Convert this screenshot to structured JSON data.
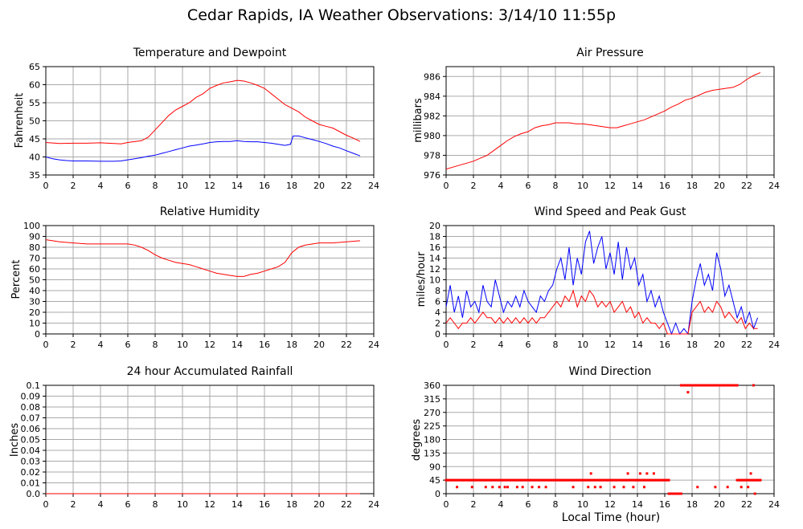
{
  "page_title": "Cedar Rapids, IA Weather Observations: 3/14/10 11:55p",
  "x_axis_label": "Local Time (hour)",
  "colors": {
    "red": "#ff0000",
    "blue": "#0000ff",
    "grid": "#aaaaaa"
  },
  "chart_data": [
    {
      "id": "temp",
      "type": "line",
      "title": "Temperature and Dewpoint",
      "ylabel": "Fahrenheit",
      "xlim": [
        0,
        24
      ],
      "ylim": [
        35,
        65
      ],
      "xticks": [
        0,
        2,
        4,
        6,
        8,
        10,
        12,
        14,
        16,
        18,
        20,
        22,
        24
      ],
      "yticks": [
        35,
        40,
        45,
        50,
        55,
        60,
        65
      ],
      "ytick_labels": [
        "35",
        "40",
        "45",
        "50",
        "55",
        "60",
        "65"
      ],
      "grid": true,
      "series": [
        {
          "color": "red",
          "style": "line",
          "x": [
            0,
            1,
            2,
            3,
            4,
            5,
            5.5,
            6,
            7,
            7.5,
            8,
            8.5,
            9,
            9.5,
            10,
            10.5,
            11,
            11.5,
            12,
            12.5,
            13,
            13.5,
            14,
            14.5,
            15,
            15.5,
            16,
            16.5,
            17,
            17.5,
            18,
            18.5,
            19,
            19.5,
            20,
            20.5,
            21,
            21.5,
            22,
            22.5,
            23
          ],
          "y": [
            44,
            43.7,
            43.8,
            43.8,
            43.9,
            43.7,
            43.6,
            44,
            44.5,
            45.5,
            47.5,
            49.5,
            51.5,
            53,
            54,
            55,
            56.5,
            57.5,
            59,
            59.8,
            60.5,
            60.8,
            61.2,
            61,
            60.5,
            59.8,
            59,
            57.5,
            56,
            54.5,
            53.5,
            52.5,
            51,
            50,
            49,
            48.5,
            48,
            47,
            46,
            45.2,
            44.3
          ]
        },
        {
          "color": "blue",
          "style": "line",
          "x": [
            0,
            0.5,
            1,
            1.5,
            2,
            3,
            4,
            5,
            5.5,
            6,
            6.5,
            7,
            7.5,
            8,
            8.5,
            9,
            9.5,
            10,
            10.5,
            11,
            11.5,
            12,
            12.5,
            13,
            13.5,
            14,
            14.5,
            15,
            15.5,
            16,
            16.5,
            17,
            17.5,
            17.9,
            18.1,
            18.5,
            19,
            19.5,
            20,
            20.5,
            21,
            21.5,
            22,
            22.5,
            23
          ],
          "y": [
            40,
            39.5,
            39.2,
            39,
            38.9,
            38.9,
            38.8,
            38.8,
            38.9,
            39.2,
            39.5,
            39.8,
            40.2,
            40.5,
            41,
            41.5,
            42,
            42.5,
            43,
            43.3,
            43.6,
            44,
            44.2,
            44.3,
            44.3,
            44.5,
            44.3,
            44.2,
            44.2,
            44,
            43.8,
            43.5,
            43.2,
            43.5,
            45.8,
            45.8,
            45.3,
            44.8,
            44.3,
            43.7,
            43,
            42.5,
            41.7,
            41,
            40.3
          ]
        }
      ]
    },
    {
      "id": "pressure",
      "type": "line",
      "title": "Air Pressure",
      "ylabel": "millibars",
      "xlim": [
        0,
        24
      ],
      "ylim": [
        976,
        987
      ],
      "xticks": [
        0,
        2,
        4,
        6,
        8,
        10,
        12,
        14,
        16,
        18,
        20,
        22,
        24
      ],
      "yticks": [
        976,
        978,
        980,
        982,
        984,
        986
      ],
      "ytick_labels": [
        "976",
        "978",
        "980",
        "982",
        "984",
        "986"
      ],
      "grid": true,
      "series": [
        {
          "color": "red",
          "style": "line",
          "x": [
            0,
            0.5,
            1,
            1.5,
            2,
            2.5,
            3,
            3.5,
            4,
            4.5,
            5,
            5.5,
            6,
            6.5,
            7,
            7.5,
            8,
            8.5,
            9,
            9.5,
            10,
            10.5,
            11,
            11.5,
            12,
            12.5,
            13,
            13.5,
            14,
            14.5,
            15,
            15.5,
            16,
            16.5,
            17,
            17.5,
            18,
            18.5,
            19,
            19.5,
            20,
            20.5,
            21,
            21.5,
            22,
            22.5,
            23
          ],
          "y": [
            976.6,
            976.8,
            977,
            977.2,
            977.4,
            977.7,
            978,
            978.5,
            979,
            979.5,
            979.9,
            980.2,
            980.4,
            980.8,
            981,
            981.1,
            981.3,
            981.3,
            981.3,
            981.2,
            981.2,
            981.1,
            981,
            980.9,
            980.8,
            980.8,
            981,
            981.2,
            981.4,
            981.6,
            981.9,
            982.2,
            982.5,
            982.9,
            983.2,
            983.6,
            983.8,
            984.1,
            984.4,
            984.6,
            984.7,
            984.8,
            984.9,
            985.2,
            985.7,
            986.1,
            986.4
          ]
        }
      ]
    },
    {
      "id": "rh",
      "type": "line",
      "title": "Relative Humidity",
      "ylabel": "Percent",
      "xlim": [
        0,
        24
      ],
      "ylim": [
        0,
        100
      ],
      "xticks": [
        0,
        2,
        4,
        6,
        8,
        10,
        12,
        14,
        16,
        18,
        20,
        22,
        24
      ],
      "yticks": [
        0,
        10,
        20,
        30,
        40,
        50,
        60,
        70,
        80,
        90,
        100
      ],
      "ytick_labels": [
        "0",
        "10",
        "20",
        "30",
        "40",
        "50",
        "60",
        "70",
        "80",
        "90",
        "100"
      ],
      "grid": true,
      "series": [
        {
          "color": "red",
          "style": "line",
          "x": [
            0,
            0.5,
            1,
            2,
            3,
            4,
            5,
            6,
            6.5,
            7,
            7.5,
            8,
            8.5,
            9,
            9.5,
            10,
            10.5,
            11,
            11.5,
            12,
            12.5,
            13,
            13.5,
            14,
            14.5,
            15,
            15.5,
            16,
            16.5,
            17,
            17.5,
            18,
            18.5,
            19,
            20,
            21,
            22,
            23
          ],
          "y": [
            87,
            86,
            85,
            84,
            83,
            83,
            83,
            83,
            82,
            80,
            77,
            73,
            70,
            68,
            66,
            65,
            64,
            62,
            60,
            58,
            56,
            55,
            54,
            53,
            53,
            55,
            56,
            58,
            60,
            62,
            66,
            75,
            80,
            82,
            84,
            84,
            85,
            86
          ]
        }
      ]
    },
    {
      "id": "wind",
      "type": "line",
      "title": "Wind Speed and Peak Gust",
      "ylabel": "miles/hour",
      "xlim": [
        0,
        24
      ],
      "ylim": [
        0,
        20
      ],
      "xticks": [
        0,
        2,
        4,
        6,
        8,
        10,
        12,
        14,
        16,
        18,
        20,
        22,
        24
      ],
      "yticks": [
        0,
        2,
        4,
        6,
        8,
        10,
        12,
        14,
        16,
        18,
        20
      ],
      "ytick_labels": [
        "0",
        "2",
        "4",
        "6",
        "8",
        "10",
        "12",
        "14",
        "16",
        "18",
        "20"
      ],
      "grid": true,
      "series": [
        {
          "color": "blue",
          "style": "line",
          "x": [
            0,
            0.3,
            0.6,
            0.9,
            1.2,
            1.5,
            1.8,
            2.1,
            2.4,
            2.7,
            3,
            3.3,
            3.6,
            3.9,
            4.2,
            4.5,
            4.8,
            5.1,
            5.4,
            5.7,
            6,
            6.3,
            6.6,
            6.9,
            7.2,
            7.5,
            7.8,
            8.1,
            8.4,
            8.7,
            9,
            9.3,
            9.6,
            9.9,
            10.2,
            10.5,
            10.8,
            11.1,
            11.4,
            11.7,
            12,
            12.3,
            12.6,
            12.9,
            13.2,
            13.5,
            13.8,
            14.1,
            14.4,
            14.7,
            15,
            15.3,
            15.6,
            15.9,
            16.2,
            16.5,
            16.8,
            17.1,
            17.4,
            17.7,
            18,
            18.3,
            18.6,
            18.9,
            19.2,
            19.5,
            19.8,
            20.1,
            20.4,
            20.7,
            21,
            21.3,
            21.6,
            21.9,
            22.2,
            22.5,
            22.8
          ],
          "y": [
            5,
            9,
            4,
            7,
            3,
            8,
            5,
            6,
            4,
            9,
            6,
            5,
            10,
            7,
            4,
            6,
            5,
            7,
            5,
            8,
            6,
            5,
            4,
            7,
            6,
            8,
            9,
            12,
            14,
            10,
            16,
            9,
            14,
            11,
            17,
            19,
            13,
            16,
            18,
            12,
            15,
            11,
            17,
            10,
            16,
            12,
            14,
            9,
            11,
            6,
            8,
            5,
            7,
            4,
            2,
            0,
            2,
            0,
            1,
            0,
            6,
            10,
            13,
            9,
            11,
            8,
            15,
            12,
            7,
            9,
            6,
            3,
            5,
            2,
            4,
            1,
            3
          ]
        },
        {
          "color": "red",
          "style": "line",
          "x": [
            0,
            0.3,
            0.6,
            0.9,
            1.2,
            1.5,
            1.8,
            2.1,
            2.4,
            2.7,
            3,
            3.3,
            3.6,
            3.9,
            4.2,
            4.5,
            4.8,
            5.1,
            5.4,
            5.7,
            6,
            6.3,
            6.6,
            6.9,
            7.2,
            7.5,
            7.8,
            8.1,
            8.4,
            8.7,
            9,
            9.3,
            9.6,
            9.9,
            10.2,
            10.5,
            10.8,
            11.1,
            11.4,
            11.7,
            12,
            12.3,
            12.6,
            12.9,
            13.2,
            13.5,
            13.8,
            14.1,
            14.4,
            14.7,
            15,
            15.3,
            15.6,
            15.9,
            16.2,
            16.5,
            16.8,
            17.1,
            17.4,
            17.7,
            18,
            18.3,
            18.6,
            18.9,
            19.2,
            19.5,
            19.8,
            20.1,
            20.4,
            20.7,
            21,
            21.3,
            21.6,
            21.9,
            22.2,
            22.5,
            22.8
          ],
          "y": [
            2,
            3,
            2,
            1,
            2,
            2,
            3,
            2,
            3,
            4,
            3,
            3,
            2,
            3,
            2,
            3,
            2,
            3,
            2,
            3,
            2,
            3,
            2,
            3,
            3,
            4,
            5,
            6,
            5,
            7,
            6,
            8,
            5,
            7,
            6,
            8,
            7,
            5,
            6,
            5,
            6,
            4,
            5,
            6,
            4,
            5,
            3,
            4,
            2,
            3,
            2,
            2,
            1,
            2,
            0,
            0,
            0,
            0,
            0,
            0,
            4,
            5,
            6,
            4,
            5,
            4,
            6,
            5,
            3,
            4,
            3,
            2,
            3,
            1,
            2,
            1,
            1
          ]
        }
      ]
    },
    {
      "id": "rain",
      "type": "line",
      "title": "24 hour Accumulated Rainfall",
      "ylabel": "Inches",
      "xlim": [
        0,
        24
      ],
      "ylim": [
        0,
        0.1
      ],
      "xticks": [
        0,
        2,
        4,
        6,
        8,
        10,
        12,
        14,
        16,
        18,
        20,
        22,
        24
      ],
      "yticks": [
        0,
        0.01,
        0.02,
        0.03,
        0.04,
        0.05,
        0.06,
        0.07,
        0.08,
        0.09,
        0.1
      ],
      "ytick_labels": [
        "0.0",
        "0.01",
        "0.02",
        "0.03",
        "0.04",
        "0.05",
        "0.06",
        "0.07",
        "0.08",
        "0.09",
        "0.1"
      ],
      "grid": true,
      "series": [
        {
          "color": "red",
          "style": "line",
          "x": [
            0,
            23
          ],
          "y": [
            0,
            0
          ]
        }
      ]
    },
    {
      "id": "wdir",
      "type": "scatter",
      "title": "Wind Direction",
      "ylabel": "degrees",
      "xlabel": "Local Time (hour)",
      "xlim": [
        0,
        24
      ],
      "ylim": [
        0,
        360
      ],
      "xticks": [
        0,
        2,
        4,
        6,
        8,
        10,
        12,
        14,
        16,
        18,
        20,
        22,
        24
      ],
      "yticks": [
        0,
        45,
        90,
        135,
        180,
        225,
        270,
        315,
        360
      ],
      "ytick_labels": [
        "0",
        "45",
        "90",
        "135",
        "180",
        "225",
        "270",
        "315",
        "360"
      ],
      "grid": true,
      "series": [
        {
          "color": "red",
          "style": "points",
          "ranges": [
            {
              "x": [
                0,
                16.3
              ],
              "step": 0.1,
              "y": 45
            },
            {
              "x": [
                16.3,
                17.2
              ],
              "step": 0.1,
              "y": 0
            },
            {
              "x": [
                17.2,
                21.3
              ],
              "step": 0.1,
              "y": 360
            },
            {
              "x": [
                21.3,
                23
              ],
              "step": 0.1,
              "y": 45
            }
          ],
          "points": [
            [
              0.8,
              22
            ],
            [
              1.9,
              22
            ],
            [
              2.9,
              22
            ],
            [
              3.4,
              22
            ],
            [
              3.9,
              22
            ],
            [
              4.3,
              22
            ],
            [
              4.5,
              22
            ],
            [
              5.2,
              22
            ],
            [
              5.6,
              22
            ],
            [
              6.3,
              22
            ],
            [
              6.8,
              22
            ],
            [
              7.3,
              22
            ],
            [
              9.3,
              22
            ],
            [
              10.4,
              22
            ],
            [
              10.6,
              67
            ],
            [
              10.9,
              22
            ],
            [
              11.3,
              22
            ],
            [
              12.3,
              22
            ],
            [
              13.0,
              22
            ],
            [
              13.3,
              67
            ],
            [
              13.7,
              22
            ],
            [
              14.2,
              67
            ],
            [
              14.5,
              22
            ],
            [
              14.7,
              67
            ],
            [
              15.2,
              67
            ],
            [
              17.7,
              337
            ],
            [
              18.4,
              22
            ],
            [
              19.7,
              22
            ],
            [
              20.6,
              22
            ],
            [
              21.6,
              22
            ],
            [
              22.1,
              22
            ],
            [
              22.3,
              67
            ],
            [
              22.5,
              360
            ],
            [
              22.6,
              0
            ]
          ]
        }
      ]
    }
  ]
}
